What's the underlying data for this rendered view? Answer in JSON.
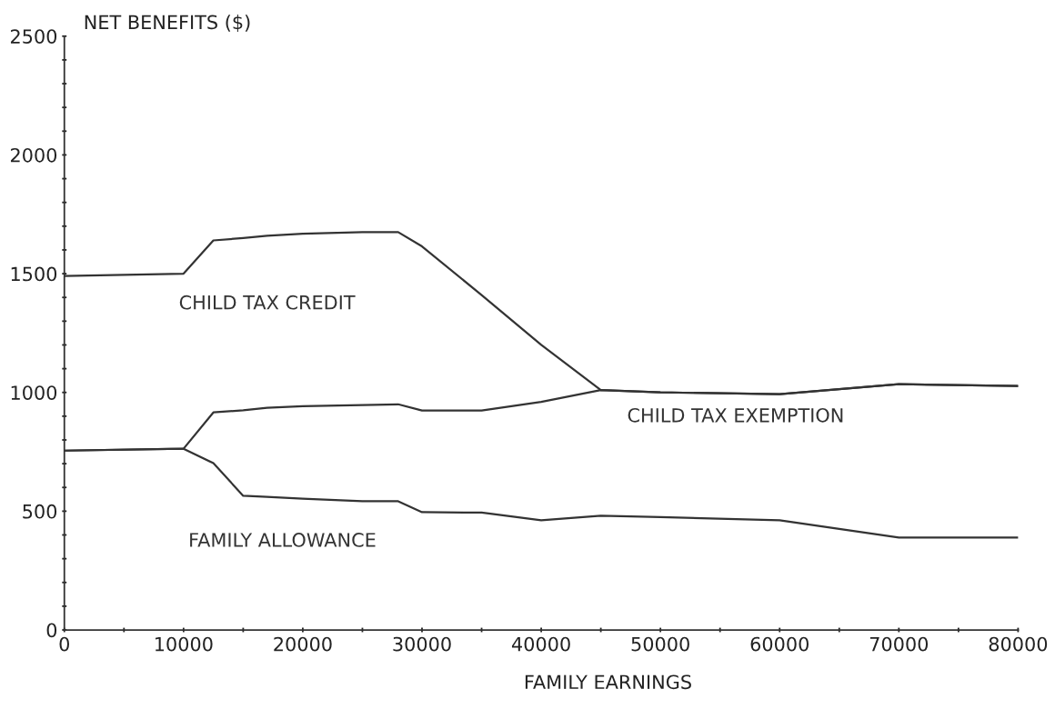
{
  "chart_data": {
    "type": "line",
    "xlabel": "FAMILY EARNINGS",
    "ylabel": "NET BENEFITS ($)",
    "x": [
      0,
      10000,
      12500,
      15000,
      17000,
      20000,
      25000,
      28000,
      30000,
      35000,
      40000,
      45000,
      50000,
      60000,
      70000,
      80000
    ],
    "series": [
      {
        "name": "CHILD TAX CREDIT",
        "color": "#333333",
        "values": [
          1490,
          1500,
          1640,
          1650,
          1660,
          1668,
          1675,
          1675,
          1615,
          1410,
          1200,
          1010,
          1000,
          993,
          1035,
          1027
        ]
      },
      {
        "name": "CHILD TAX EXEMPTION",
        "color": "#333333",
        "values": [
          755,
          763,
          916,
          925,
          935,
          942,
          947,
          950,
          924,
          924,
          960,
          1010,
          1000,
          993,
          1035,
          1027
        ]
      },
      {
        "name": "FAMILY ALLOWANCE",
        "color": "#333333",
        "values": [
          755,
          763,
          702,
          565,
          560,
          553,
          542,
          542,
          496,
          494,
          462,
          481,
          475,
          462,
          389,
          389
        ]
      }
    ],
    "xlim": [
      0,
      80000
    ],
    "ylim": [
      0,
      2500
    ],
    "xticks": [
      0,
      {
        "value": 5000,
        "label": null
      },
      10000,
      {
        "value": 15000,
        "label": null
      },
      20000,
      {
        "value": 25000,
        "label": null
      },
      30000,
      {
        "value": 35000,
        "label": null
      },
      40000,
      {
        "value": 45000,
        "label": null
      },
      50000,
      {
        "value": 55000,
        "label": null
      },
      60000,
      {
        "value": 65000,
        "label": null
      },
      70000,
      {
        "value": 75000,
        "label": null
      },
      80000
    ],
    "yticks": [
      0,
      {
        "value": 100,
        "label": null
      },
      {
        "value": 200,
        "label": null
      },
      {
        "value": 300,
        "label": null
      },
      {
        "value": 400,
        "label": null
      },
      500,
      {
        "value": 600,
        "label": null
      },
      {
        "value": 700,
        "label": null
      },
      {
        "value": 800,
        "label": null
      },
      {
        "value": 900,
        "label": null
      },
      1000,
      {
        "value": 1100,
        "label": null
      },
      {
        "value": 1200,
        "label": null
      },
      {
        "value": 1300,
        "label": null
      },
      {
        "value": 1400,
        "label": null
      },
      1500,
      {
        "value": 1600,
        "label": null
      },
      {
        "value": 1700,
        "label": null
      },
      {
        "value": 1800,
        "label": null
      },
      {
        "value": 1900,
        "label": null
      },
      2000,
      {
        "value": 2100,
        "label": null
      },
      {
        "value": 2200,
        "label": null
      },
      {
        "value": 2300,
        "label": null
      },
      {
        "value": 2400,
        "label": null
      },
      2500
    ],
    "grid": false,
    "legend": false,
    "marker": "none",
    "line_style": "solid"
  }
}
